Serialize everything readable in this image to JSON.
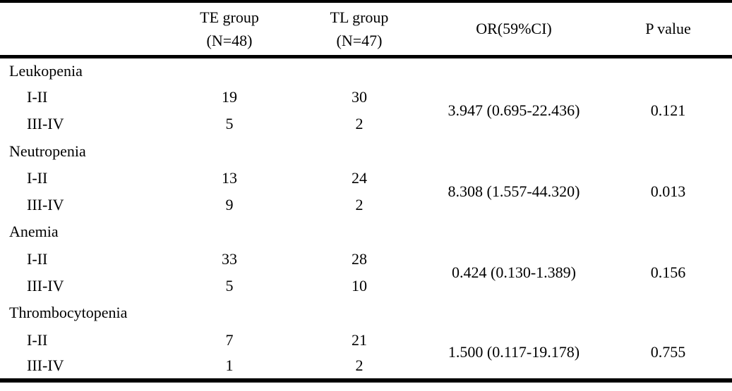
{
  "table": {
    "header": {
      "te_line1": "TE group",
      "te_line2": "(N=48)",
      "tl_line1": "TL group",
      "tl_line2": "(N=47)",
      "or_label": "OR(59%CI)",
      "p_label": "P value"
    },
    "sections": [
      {
        "label": "Leukopenia",
        "rows": [
          {
            "grade": "I-II",
            "te": "19",
            "tl": "30"
          },
          {
            "grade": "III-IV",
            "te": "5",
            "tl": "2"
          }
        ],
        "or_ci": "3.947 (0.695-22.436)",
        "p_value": "0.121"
      },
      {
        "label": "Neutropenia",
        "rows": [
          {
            "grade": "I-II",
            "te": "13",
            "tl": "24"
          },
          {
            "grade": "III-IV",
            "te": "9",
            "tl": "2"
          }
        ],
        "or_ci": "8.308 (1.557-44.320)",
        "p_value": "0.013"
      },
      {
        "label": "Anemia",
        "rows": [
          {
            "grade": "I-II",
            "te": "33",
            "tl": "28"
          },
          {
            "grade": "III-IV",
            "te": "5",
            "tl": "10"
          }
        ],
        "or_ci": "0.424 (0.130-1.389)",
        "p_value": "0.156"
      },
      {
        "label": "Thrombocytopenia",
        "rows": [
          {
            "grade": "I-II",
            "te": "7",
            "tl": "21"
          },
          {
            "grade": "III-IV",
            "te": "1",
            "tl": "2"
          }
        ],
        "or_ci": "1.500 (0.117-19.178)",
        "p_value": "0.755"
      }
    ]
  }
}
